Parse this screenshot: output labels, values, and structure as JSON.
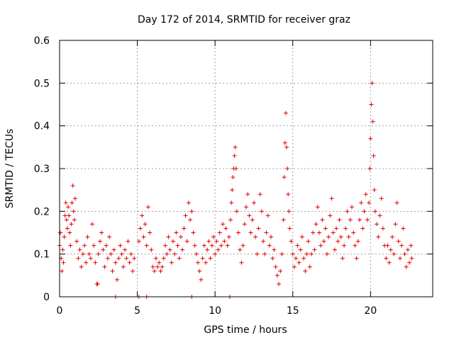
{
  "chart_data": {
    "type": "scatter",
    "title": "Day 172 of 2014, SRMTID for receiver graz",
    "xlabel": "GPS time / hours",
    "ylabel": "SRMTID / TECUs",
    "xlim": [
      0,
      24
    ],
    "ylim": [
      0,
      0.6
    ],
    "xticks": [
      0,
      5,
      10,
      15,
      20
    ],
    "yticks": [
      0,
      0.1,
      0.2,
      0.3,
      0.4,
      0.5,
      0.6
    ],
    "xtick_labels": [
      "0",
      "5",
      "10",
      "15",
      "20"
    ],
    "ytick_labels": [
      "0",
      "0.1",
      "0.2",
      "0.3",
      "0.4",
      "0.5",
      "0.6"
    ],
    "grid": true,
    "marker": "plus",
    "series": [
      {
        "name": "SRMTID",
        "color": "#e00000",
        "points": [
          [
            0.0,
            0.12
          ],
          [
            0.05,
            0.15
          ],
          [
            0.1,
            0.09
          ],
          [
            0.15,
            0.06
          ],
          [
            0.2,
            0.11
          ],
          [
            0.25,
            0.08
          ],
          [
            0.3,
            0.14
          ],
          [
            0.35,
            0.19
          ],
          [
            0.4,
            0.22
          ],
          [
            0.45,
            0.18
          ],
          [
            0.5,
            0.16
          ],
          [
            0.55,
            0.21
          ],
          [
            0.6,
            0.19
          ],
          [
            0.65,
            0.15
          ],
          [
            0.7,
            0.12
          ],
          [
            0.75,
            0.17
          ],
          [
            0.8,
            0.22
          ],
          [
            0.85,
            0.26
          ],
          [
            0.9,
            0.2
          ],
          [
            0.95,
            0.18
          ],
          [
            1.0,
            0.23
          ],
          [
            1.1,
            0.13
          ],
          [
            1.2,
            0.09
          ],
          [
            1.3,
            0.11
          ],
          [
            1.4,
            0.07
          ],
          [
            1.5,
            0.1
          ],
          [
            1.6,
            0.12
          ],
          [
            1.7,
            0.08
          ],
          [
            1.8,
            0.14
          ],
          [
            1.9,
            0.1
          ],
          [
            2.0,
            0.09
          ],
          [
            2.1,
            0.17
          ],
          [
            2.2,
            0.12
          ],
          [
            2.3,
            0.08
          ],
          [
            2.4,
            0.03
          ],
          [
            2.45,
            0.03
          ],
          [
            2.5,
            0.1
          ],
          [
            2.6,
            0.13
          ],
          [
            2.7,
            0.15
          ],
          [
            2.8,
            0.11
          ],
          [
            2.9,
            0.07
          ],
          [
            3.0,
            0.12
          ],
          [
            3.1,
            0.09
          ],
          [
            3.2,
            0.14
          ],
          [
            3.3,
            0.1
          ],
          [
            3.4,
            0.06
          ],
          [
            3.5,
            0.11
          ],
          [
            3.6,
            0.08
          ],
          [
            3.7,
            0.04
          ],
          [
            3.8,
            0.09
          ],
          [
            3.9,
            0.12
          ],
          [
            4.0,
            0.1
          ],
          [
            4.1,
            0.07
          ],
          [
            4.2,
            0.11
          ],
          [
            4.3,
            0.09
          ],
          [
            4.4,
            0.13
          ],
          [
            4.5,
            0.08
          ],
          [
            4.6,
            0.1
          ],
          [
            4.7,
            0.06
          ],
          [
            4.8,
            0.09
          ],
          [
            5.1,
            0.13
          ],
          [
            5.2,
            0.16
          ],
          [
            5.3,
            0.19
          ],
          [
            5.4,
            0.14
          ],
          [
            5.5,
            0.17
          ],
          [
            5.6,
            0.12
          ],
          [
            5.7,
            0.21
          ],
          [
            5.8,
            0.15
          ],
          [
            5.9,
            0.11
          ],
          [
            6.0,
            0.07
          ],
          [
            6.1,
            0.06
          ],
          [
            6.2,
            0.09
          ],
          [
            6.3,
            0.07
          ],
          [
            6.4,
            0.08
          ],
          [
            6.5,
            0.06
          ],
          [
            6.6,
            0.07
          ],
          [
            6.7,
            0.09
          ],
          [
            6.8,
            0.12
          ],
          [
            6.9,
            0.1
          ],
          [
            7.0,
            0.14
          ],
          [
            7.1,
            0.11
          ],
          [
            7.2,
            0.08
          ],
          [
            7.3,
            0.13
          ],
          [
            7.4,
            0.1
          ],
          [
            7.5,
            0.15
          ],
          [
            7.6,
            0.12
          ],
          [
            7.7,
            0.09
          ],
          [
            7.8,
            0.14
          ],
          [
            7.9,
            0.11
          ],
          [
            8.0,
            0.16
          ],
          [
            8.1,
            0.19
          ],
          [
            8.2,
            0.13
          ],
          [
            8.3,
            0.22
          ],
          [
            8.4,
            0.18
          ],
          [
            8.5,
            0.2
          ],
          [
            8.6,
            0.15
          ],
          [
            8.7,
            0.12
          ],
          [
            8.8,
            0.1
          ],
          [
            8.9,
            0.08
          ],
          [
            9.0,
            0.06
          ],
          [
            9.1,
            0.04
          ],
          [
            9.2,
            0.09
          ],
          [
            9.3,
            0.12
          ],
          [
            9.4,
            0.08
          ],
          [
            9.5,
            0.11
          ],
          [
            9.6,
            0.13
          ],
          [
            9.7,
            0.09
          ],
          [
            9.8,
            0.12
          ],
          [
            9.9,
            0.14
          ],
          [
            10.0,
            0.1
          ],
          [
            10.1,
            0.13
          ],
          [
            10.2,
            0.11
          ],
          [
            10.3,
            0.15
          ],
          [
            10.4,
            0.12
          ],
          [
            10.5,
            0.17
          ],
          [
            10.6,
            0.13
          ],
          [
            10.7,
            0.16
          ],
          [
            10.8,
            0.12
          ],
          [
            10.9,
            0.14
          ],
          [
            11.0,
            0.18
          ],
          [
            11.05,
            0.22
          ],
          [
            11.1,
            0.25
          ],
          [
            11.15,
            0.28
          ],
          [
            11.2,
            0.3
          ],
          [
            11.25,
            0.33
          ],
          [
            11.3,
            0.35
          ],
          [
            11.35,
            0.3
          ],
          [
            11.4,
            0.2
          ],
          [
            11.5,
            0.15
          ],
          [
            11.6,
            0.11
          ],
          [
            11.7,
            0.08
          ],
          [
            11.8,
            0.12
          ],
          [
            11.9,
            0.17
          ],
          [
            12.0,
            0.21
          ],
          [
            12.1,
            0.24
          ],
          [
            12.2,
            0.19
          ],
          [
            12.3,
            0.15
          ],
          [
            12.4,
            0.18
          ],
          [
            12.5,
            0.22
          ],
          [
            12.6,
            0.14
          ],
          [
            12.7,
            0.1
          ],
          [
            12.8,
            0.16
          ],
          [
            12.9,
            0.24
          ],
          [
            13.0,
            0.2
          ],
          [
            13.1,
            0.13
          ],
          [
            13.2,
            0.1
          ],
          [
            13.3,
            0.15
          ],
          [
            13.4,
            0.19
          ],
          [
            13.5,
            0.12
          ],
          [
            13.6,
            0.14
          ],
          [
            13.7,
            0.09
          ],
          [
            13.8,
            0.11
          ],
          [
            13.9,
            0.07
          ],
          [
            14.0,
            0.05
          ],
          [
            14.1,
            0.03
          ],
          [
            14.2,
            0.06
          ],
          [
            14.3,
            0.1
          ],
          [
            14.4,
            0.18
          ],
          [
            14.45,
            0.28
          ],
          [
            14.5,
            0.36
          ],
          [
            14.55,
            0.43
          ],
          [
            14.6,
            0.35
          ],
          [
            14.65,
            0.3
          ],
          [
            14.7,
            0.24
          ],
          [
            14.75,
            0.2
          ],
          [
            14.8,
            0.16
          ],
          [
            14.9,
            0.13
          ],
          [
            15.0,
            0.1
          ],
          [
            15.1,
            0.07
          ],
          [
            15.2,
            0.09
          ],
          [
            15.3,
            0.12
          ],
          [
            15.4,
            0.08
          ],
          [
            15.5,
            0.11
          ],
          [
            15.6,
            0.14
          ],
          [
            15.7,
            0.09
          ],
          [
            15.8,
            0.06
          ],
          [
            15.9,
            0.1
          ],
          [
            16.0,
            0.13
          ],
          [
            16.1,
            0.07
          ],
          [
            16.2,
            0.1
          ],
          [
            16.3,
            0.15
          ],
          [
            16.4,
            0.11
          ],
          [
            16.5,
            0.17
          ],
          [
            16.6,
            0.21
          ],
          [
            16.7,
            0.15
          ],
          [
            16.8,
            0.12
          ],
          [
            16.9,
            0.18
          ],
          [
            17.0,
            0.13
          ],
          [
            17.1,
            0.16
          ],
          [
            17.2,
            0.1
          ],
          [
            17.3,
            0.14
          ],
          [
            17.4,
            0.19
          ],
          [
            17.5,
            0.23
          ],
          [
            17.6,
            0.15
          ],
          [
            17.7,
            0.11
          ],
          [
            17.8,
            0.16
          ],
          [
            17.9,
            0.13
          ],
          [
            18.0,
            0.18
          ],
          [
            18.1,
            0.14
          ],
          [
            18.2,
            0.09
          ],
          [
            18.3,
            0.12
          ],
          [
            18.4,
            0.16
          ],
          [
            18.5,
            0.2
          ],
          [
            18.6,
            0.14
          ],
          [
            18.7,
            0.18
          ],
          [
            18.8,
            0.21
          ],
          [
            18.9,
            0.15
          ],
          [
            19.0,
            0.12
          ],
          [
            19.1,
            0.09
          ],
          [
            19.2,
            0.13
          ],
          [
            19.3,
            0.18
          ],
          [
            19.4,
            0.22
          ],
          [
            19.5,
            0.16
          ],
          [
            19.6,
            0.2
          ],
          [
            19.7,
            0.24
          ],
          [
            19.8,
            0.18
          ],
          [
            19.9,
            0.22
          ],
          [
            19.95,
            0.3
          ],
          [
            20.0,
            0.37
          ],
          [
            20.05,
            0.45
          ],
          [
            20.1,
            0.5
          ],
          [
            20.15,
            0.41
          ],
          [
            20.2,
            0.33
          ],
          [
            20.25,
            0.25
          ],
          [
            20.3,
            0.2
          ],
          [
            20.4,
            0.17
          ],
          [
            20.5,
            0.14
          ],
          [
            20.6,
            0.19
          ],
          [
            20.7,
            0.23
          ],
          [
            20.8,
            0.16
          ],
          [
            20.9,
            0.12
          ],
          [
            21.0,
            0.09
          ],
          [
            21.1,
            0.12
          ],
          [
            21.2,
            0.08
          ],
          [
            21.3,
            0.11
          ],
          [
            21.4,
            0.14
          ],
          [
            21.5,
            0.1
          ],
          [
            21.6,
            0.17
          ],
          [
            21.7,
            0.22
          ],
          [
            21.8,
            0.13
          ],
          [
            21.9,
            0.09
          ],
          [
            22.0,
            0.12
          ],
          [
            22.1,
            0.16
          ],
          [
            22.2,
            0.1
          ],
          [
            22.3,
            0.07
          ],
          [
            22.4,
            0.11
          ],
          [
            22.5,
            0.08
          ],
          [
            22.6,
            0.12
          ],
          [
            22.65,
            0.09
          ],
          [
            3.6,
            0.0
          ],
          [
            5.1,
            0.0
          ],
          [
            5.6,
            0.0
          ],
          [
            8.5,
            0.0
          ],
          [
            10.95,
            0.0
          ]
        ]
      }
    ]
  }
}
